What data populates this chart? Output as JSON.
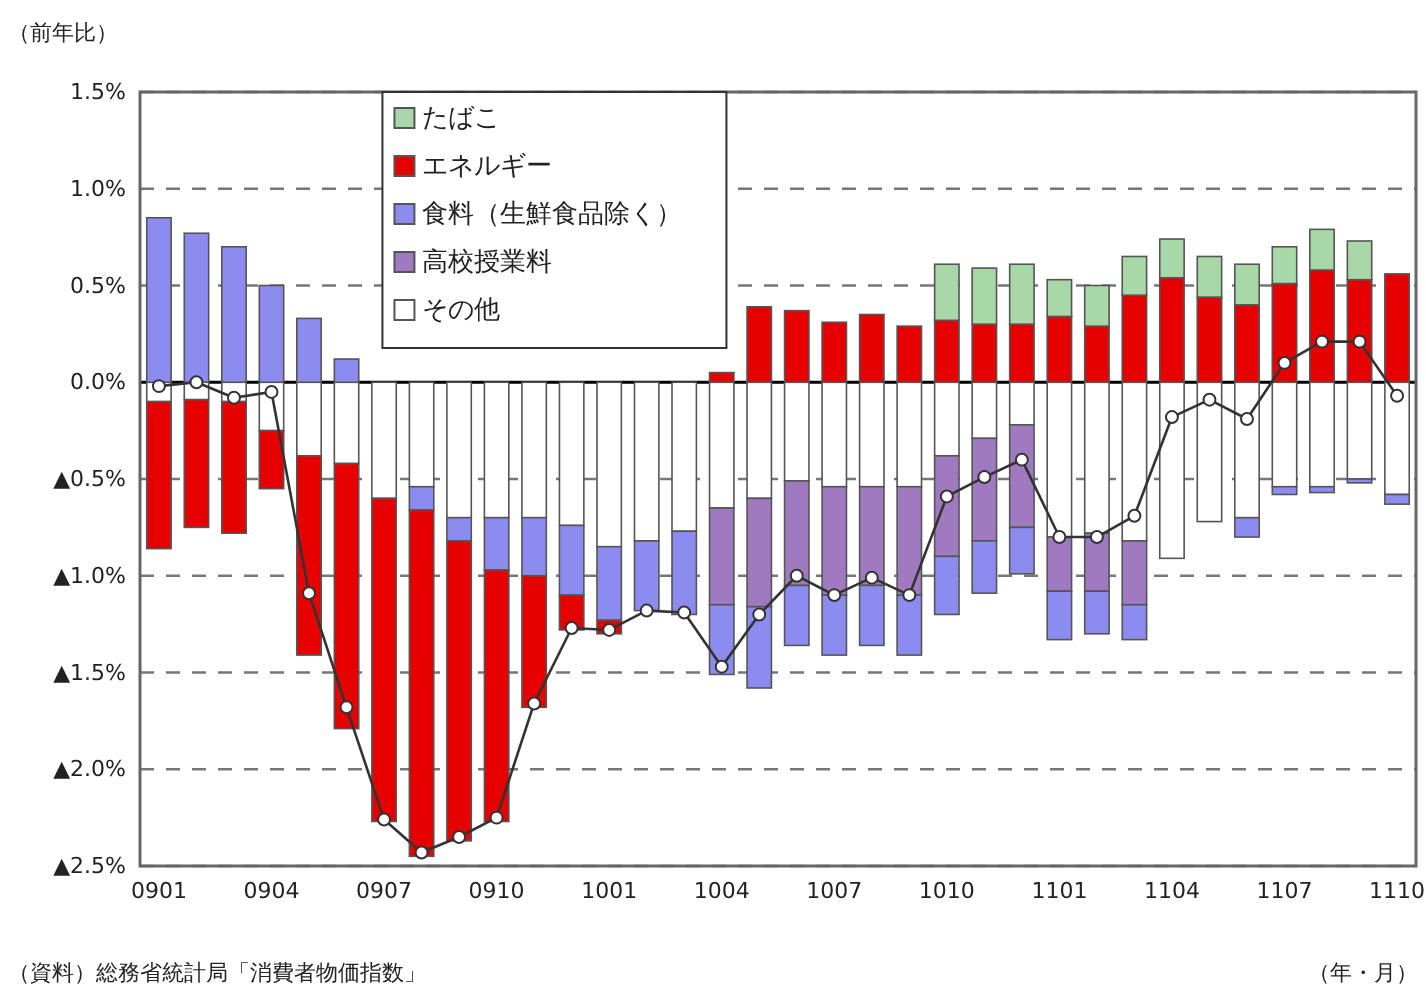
{
  "chart_data": {
    "type": "bar",
    "stacked": true,
    "ylabel": "（前年比）",
    "xlabel": "（年・月）",
    "annotations": [
      "（資料）総務省統計局「消費者物価指数」"
    ],
    "categories": [
      "0901",
      null,
      null,
      "0904",
      null,
      null,
      "0907",
      null,
      null,
      "0910",
      null,
      null,
      "1001",
      null,
      null,
      "1004",
      null,
      null,
      "1007",
      null,
      null,
      "1010",
      null,
      null,
      "1101",
      null,
      null,
      "1104",
      null,
      null,
      "1107",
      null,
      null,
      "1110"
    ],
    "ylim": [
      -2.5,
      1.5
    ],
    "yticks": [
      {
        "value": 1.5,
        "label": "1.5%"
      },
      {
        "value": 1.0,
        "label": "1.0%"
      },
      {
        "value": 0.5,
        "label": "0.5%"
      },
      {
        "value": 0,
        "label": "0.0%"
      },
      {
        "value": -0.5,
        "label": "▲0.5%"
      },
      {
        "value": -1.0,
        "label": "▲1.0%"
      },
      {
        "value": -1.5,
        "label": "▲1.5%"
      },
      {
        "value": -2.0,
        "label": "▲2.0%"
      },
      {
        "value": -2.5,
        "label": "▲2.5%"
      }
    ],
    "grid": "y",
    "legend": "top left",
    "marker": "circle",
    "series": [
      {
        "name": "その他",
        "color": "#ffffff",
        "values": [
          -0.1,
          -0.09,
          -0.1,
          -0.25,
          -0.38,
          -0.42,
          -0.6,
          -0.54,
          -0.7,
          -0.7,
          -0.7,
          -0.74,
          -0.85,
          -0.82,
          -0.77,
          -0.65,
          -0.6,
          -0.51,
          -0.54,
          -0.54,
          -0.54,
          -0.38,
          -0.29,
          -0.22,
          -0.8,
          -0.78,
          -0.82,
          -0.91,
          -0.72,
          -0.7,
          -0.54,
          -0.54,
          -0.5,
          -0.58
        ]
      },
      {
        "name": "高校授業料",
        "color": "#a07ac0",
        "values": [
          null,
          null,
          null,
          null,
          null,
          null,
          null,
          null,
          null,
          null,
          null,
          null,
          null,
          null,
          null,
          -0.5,
          -0.56,
          -0.54,
          -0.56,
          -0.51,
          -0.56,
          -0.52,
          -0.53,
          -0.53,
          -0.28,
          -0.3,
          -0.33,
          null,
          null,
          null,
          null,
          null,
          null,
          null
        ]
      },
      {
        "name": "食料（生鮮食品除く）",
        "color": "#8c8cf0",
        "values": [
          0.85,
          0.77,
          0.7,
          0.5,
          0.33,
          0.12,
          null,
          -0.12,
          -0.12,
          -0.27,
          -0.3,
          -0.36,
          -0.38,
          -0.36,
          -0.43,
          -0.36,
          -0.42,
          -0.31,
          -0.31,
          -0.31,
          -0.31,
          -0.3,
          -0.27,
          -0.24,
          -0.25,
          -0.22,
          -0.18,
          null,
          null,
          -0.1,
          -0.04,
          -0.03,
          -0.02,
          -0.05
        ]
      },
      {
        "name": "エネルギー",
        "color": "#e60000",
        "values": [
          -0.76,
          -0.66,
          -0.68,
          -0.3,
          -1.03,
          -1.37,
          -1.67,
          -1.79,
          -1.55,
          -1.3,
          -0.68,
          -0.18,
          -0.07,
          null,
          null,
          0.05,
          0.39,
          0.37,
          0.31,
          0.35,
          0.29,
          0.32,
          0.3,
          0.3,
          0.34,
          0.29,
          0.45,
          0.54,
          0.44,
          0.4,
          0.51,
          0.58,
          0.53,
          0.56
        ]
      },
      {
        "name": "たばこ",
        "color": "#a8d8a8",
        "values": [
          null,
          null,
          null,
          null,
          null,
          null,
          null,
          null,
          null,
          null,
          null,
          null,
          null,
          null,
          null,
          null,
          null,
          null,
          null,
          null,
          null,
          0.29,
          0.29,
          0.31,
          0.19,
          0.21,
          0.2,
          0.2,
          0.21,
          0.21,
          0.19,
          0.21,
          0.2,
          null
        ]
      },
      {
        "type": "line",
        "color": "#333333",
        "values": [
          -0.02,
          0.0,
          -0.08,
          -0.05,
          -1.09,
          -1.68,
          -2.26,
          -2.43,
          -2.35,
          -2.25,
          -1.66,
          -1.27,
          -1.28,
          -1.18,
          -1.19,
          -1.47,
          -1.2,
          -1.0,
          -1.1,
          -1.01,
          -1.1,
          -0.59,
          -0.49,
          -0.4,
          -0.8,
          -0.8,
          -0.69,
          -0.18,
          -0.09,
          -0.19,
          0.1,
          0.21,
          0.21,
          -0.07
        ]
      }
    ]
  }
}
